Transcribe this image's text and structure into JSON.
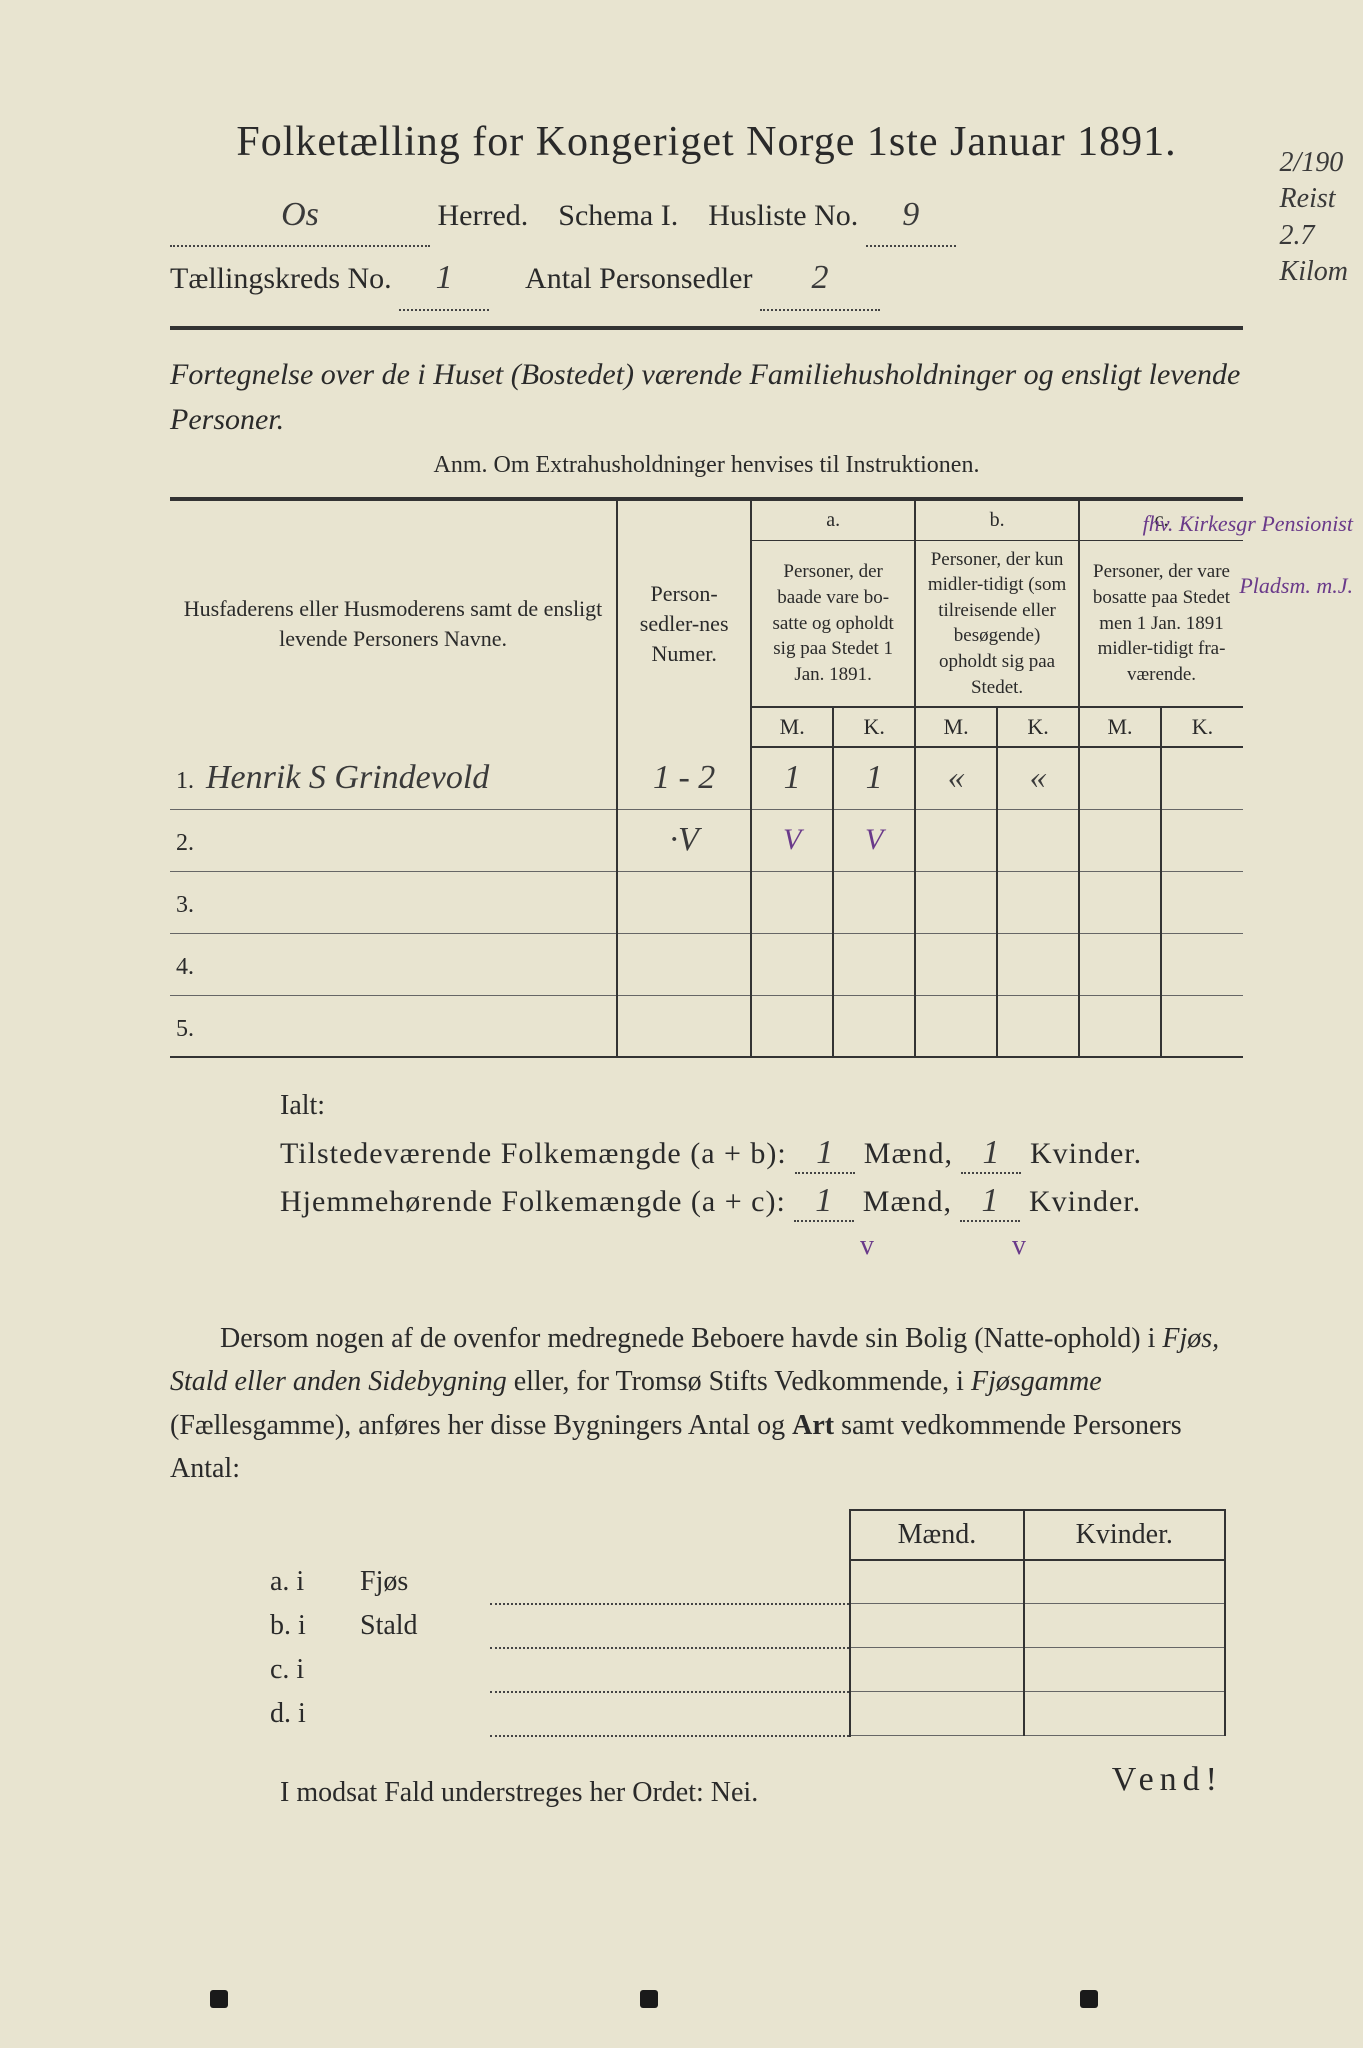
{
  "title": "Folketælling for Kongeriget Norge 1ste Januar 1891.",
  "header": {
    "herred_value": "Os",
    "herred_label": "Herred.",
    "schema_label": "Schema I.",
    "husliste_label": "Husliste No.",
    "husliste_value": "9",
    "kreds_label": "Tællingskreds No.",
    "kreds_value": "1",
    "persedler_label": "Antal Personsedler",
    "persedler_value": "2"
  },
  "margin_notes": {
    "line1": "2/190",
    "line2": "Reist",
    "line3": "2.7",
    "line4": "Kilom"
  },
  "intro": "Fortegnelse over de i Huset (Bostedet) værende Familiehusholdninger og ensligt levende Personer.",
  "anm": "Anm.  Om Extrahusholdninger henvises til Instruktionen.",
  "table": {
    "col1": "Husfaderens eller Husmoderens samt de ensligt levende Personers Navne.",
    "col2": "Person-sedler-nes Numer.",
    "a_label": "a.",
    "a_text": "Personer, der baade vare bo-satte og opholdt sig paa Stedet 1 Jan. 1891.",
    "b_label": "b.",
    "b_text": "Personer, der kun midler-tidigt (som tilreisende eller besøgende) opholdt sig paa Stedet.",
    "c_label": "c.",
    "c_text": "Personer, der vare bosatte paa Stedet men 1 Jan. 1891 midler-tidigt fra-værende.",
    "M": "M.",
    "K": "K.",
    "rows": [
      {
        "num": "1.",
        "name": "Henrik S Grindevold",
        "sedler": "1 - 2",
        "aM": "1",
        "aK": "1",
        "bM": "«",
        "bK": "«",
        "cM": "",
        "cK": "",
        "note": "fhv. Kirkesgr Pensionist"
      },
      {
        "num": "2.",
        "name": "",
        "sedler": "·V",
        "aM": "V",
        "aK": "V",
        "bM": "",
        "bK": "",
        "cM": "",
        "cK": "",
        "note": "Pladsm. m.J."
      },
      {
        "num": "3.",
        "name": "",
        "sedler": "",
        "aM": "",
        "aK": "",
        "bM": "",
        "bK": "",
        "cM": "",
        "cK": "",
        "note": ""
      },
      {
        "num": "4.",
        "name": "",
        "sedler": "",
        "aM": "",
        "aK": "",
        "bM": "",
        "bK": "",
        "cM": "",
        "cK": "",
        "note": ""
      },
      {
        "num": "5.",
        "name": "",
        "sedler": "",
        "aM": "",
        "aK": "",
        "bM": "",
        "bK": "",
        "cM": "",
        "cK": "",
        "note": ""
      }
    ]
  },
  "totals": {
    "ialt": "Ialt:",
    "line1_label": "Tilstedeværende Folkemængde (a + b):",
    "line1_m": "1",
    "line1_k": "1",
    "line2_label": "Hjemmehørende Folkemængde (a + c):",
    "line2_m": "1",
    "line2_k": "1",
    "maend": "Mænd,",
    "kvinder": "Kvinder.",
    "check_m": "v",
    "check_k": "v"
  },
  "para": {
    "text1": "Dersom nogen af de ovenfor medregnede Beboere havde sin Bolig (Natte-ophold) i ",
    "italic1": "Fjøs, Stald eller anden Sidebygning",
    "text2": " eller, for Tromsø Stifts Vedkommende, i ",
    "italic2": "Fjøsgamme",
    "text3": " (Fællesgamme), anføres her disse Bygningers Antal og ",
    "bold": "Art",
    "text4": " samt vedkommende Personers Antal:"
  },
  "bottom": {
    "maend": "Mænd.",
    "kvinder": "Kvinder.",
    "rows": [
      {
        "label": "a.  i",
        "type": "Fjøs"
      },
      {
        "label": "b.  i",
        "type": "Stald"
      },
      {
        "label": "c.  i",
        "type": ""
      },
      {
        "label": "d.  i",
        "type": ""
      }
    ]
  },
  "nei": "I modsat Fald understreges her Ordet: Nei.",
  "vend": "Vend!",
  "colors": {
    "background": "#e8e4d0",
    "text": "#2a2a2a",
    "handwriting": "#3a3a3a",
    "purple": "#6a3a8a"
  }
}
